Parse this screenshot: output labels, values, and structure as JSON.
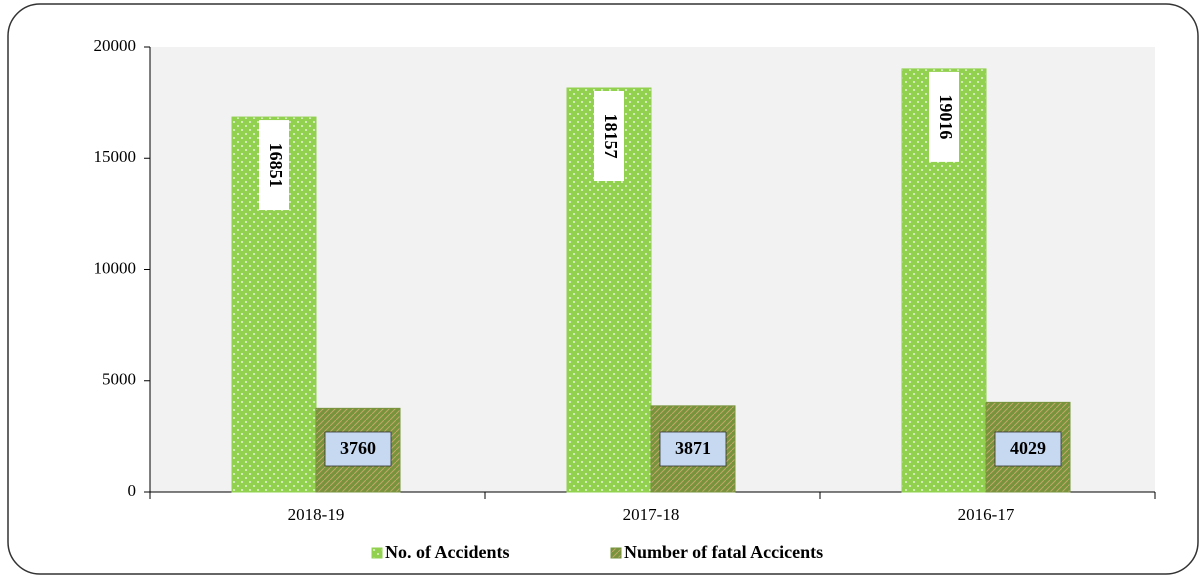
{
  "chart_data": {
    "type": "bar",
    "categories": [
      "2018-19",
      "2017-18",
      "2016-17"
    ],
    "series": [
      {
        "name": "No. of Accidents",
        "color": "#92d050",
        "values": [
          16851,
          18157,
          19016
        ]
      },
      {
        "name": "Number of fatal Accicents",
        "color": "#77933c",
        "values": [
          3760,
          3871,
          4029
        ]
      }
    ],
    "ylim": [
      0,
      20000
    ],
    "yticks": [
      0,
      5000,
      10000,
      15000,
      20000
    ],
    "grid": false,
    "legend": "bottom"
  }
}
